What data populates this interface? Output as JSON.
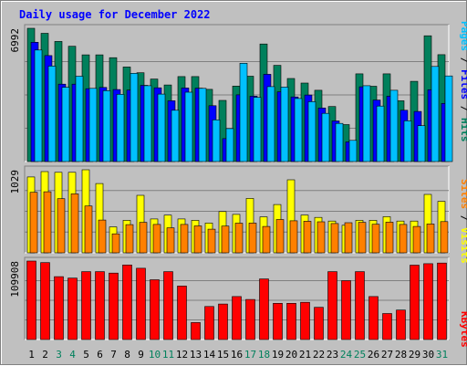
{
  "chart_data": {
    "type": "bar",
    "title": "Daily usage for December 2022",
    "categories": [
      "1",
      "2",
      "3",
      "4",
      "5",
      "6",
      "7",
      "8",
      "9",
      "10",
      "11",
      "12",
      "13",
      "14",
      "15",
      "16",
      "17",
      "18",
      "19",
      "20",
      "21",
      "22",
      "23",
      "24",
      "25",
      "26",
      "27",
      "28",
      "29",
      "30",
      "31"
    ],
    "weekend_days": [
      "3",
      "4",
      "10",
      "11",
      "17",
      "18",
      "24",
      "25",
      "31"
    ],
    "panels": [
      {
        "name": "hits-files-pages",
        "ymax_label": "6992",
        "ymax": 6992,
        "grid": true,
        "series": [
          {
            "name": "Hits",
            "color": "#00805c",
            "values": [
              6992,
              6730,
              6300,
              6050,
              5600,
              5600,
              5450,
              4960,
              4660,
              4330,
              4020,
              4460,
              4460,
              3790,
              3210,
              3960,
              4480,
              6170,
              5050,
              4360,
              4120,
              3740,
              2890,
              1940,
              4600,
              3950,
              4600,
              3190,
              4210,
              6600,
              5610
            ]
          },
          {
            "name": "Files",
            "color": "#0000ff",
            "values": [
              6260,
              5560,
              4060,
              4060,
              3820,
              3890,
              3780,
              3750,
              4000,
              3870,
              3190,
              3860,
              3850,
              2930,
              1200,
              3500,
              3430,
              4580,
              3660,
              3390,
              3490,
              2810,
              2130,
              1030,
              3920,
              3230,
              3430,
              2690,
              2630,
              3770,
              3050
            ]
          },
          {
            "name": "Pages",
            "color": "#00c0ff",
            "values": [
              5850,
              5010,
              3900,
              4480,
              3840,
              3720,
              3530,
              4630,
              3980,
              3540,
              2690,
              3640,
              3840,
              2190,
              1730,
              5160,
              3370,
              3930,
              3910,
              3310,
              3140,
              2530,
              2000,
              1110,
              3980,
              2910,
              3740,
              2140,
              1880,
              4990,
              4490
            ]
          }
        ]
      },
      {
        "name": "visits-sites",
        "ymax_label": "1029",
        "ymax": 1029,
        "grid": true,
        "series": [
          {
            "name": "Visits",
            "color": "#ffff00",
            "values": [
              940,
              1006,
              997,
              997,
              1029,
              858,
              321,
              402,
              712,
              420,
              467,
              420,
              402,
              369,
              511,
              476,
              674,
              446,
              598,
              905,
              468,
              439,
              393,
              341,
              402,
              402,
              448,
              393,
              393,
              724,
              638
            ]
          },
          {
            "name": "Sites",
            "color": "#ff8000",
            "values": [
              750,
              756,
              671,
              730,
              580,
              406,
              235,
              349,
              378,
              352,
              310,
              352,
              334,
              293,
              331,
              368,
              369,
              327,
              413,
              397,
              391,
              385,
              363,
              373,
              378,
              354,
              380,
              352,
              327,
              357,
              387
            ]
          }
        ]
      },
      {
        "name": "kbytes",
        "ymax_label": "109908",
        "ymax": 109908,
        "grid": true,
        "series": [
          {
            "name": "KBytes",
            "color": "#ff0000",
            "values": [
              109908,
              107760,
              88080,
              86040,
              95130,
              95130,
              93090,
              104460,
              99860,
              83690,
              95130,
              74920,
              23800,
              46250,
              49690,
              60160,
              56140,
              84870,
              50760,
              50760,
              52100,
              45110,
              95130,
              82370,
              95130,
              60160,
              36460,
              41260,
              104120,
              106180,
              107140
            ]
          }
        ]
      }
    ],
    "right_labels": [
      {
        "id": "top",
        "parts": [
          {
            "text": "Pages",
            "color": "#00c0ff"
          },
          {
            "text": " / ",
            "color": "#000000"
          },
          {
            "text": "Files",
            "color": "#0000ff"
          },
          {
            "text": " / ",
            "color": "#000000"
          },
          {
            "text": "Hits",
            "color": "#00805c"
          }
        ]
      },
      {
        "id": "mid",
        "parts": [
          {
            "text": "Sites",
            "color": "#ff8000"
          },
          {
            "text": " / ",
            "color": "#000000"
          },
          {
            "text": "Visits",
            "color": "#ffff00"
          }
        ]
      },
      {
        "id": "bot",
        "parts": [
          {
            "text": "KBytes",
            "color": "#ff0000"
          }
        ]
      }
    ],
    "colors": {
      "title": "#0000ff",
      "weekday_label": "#000000",
      "weekend_label": "#00805c",
      "plot_bg": "#c0c0c0",
      "grid": "#808080"
    }
  }
}
